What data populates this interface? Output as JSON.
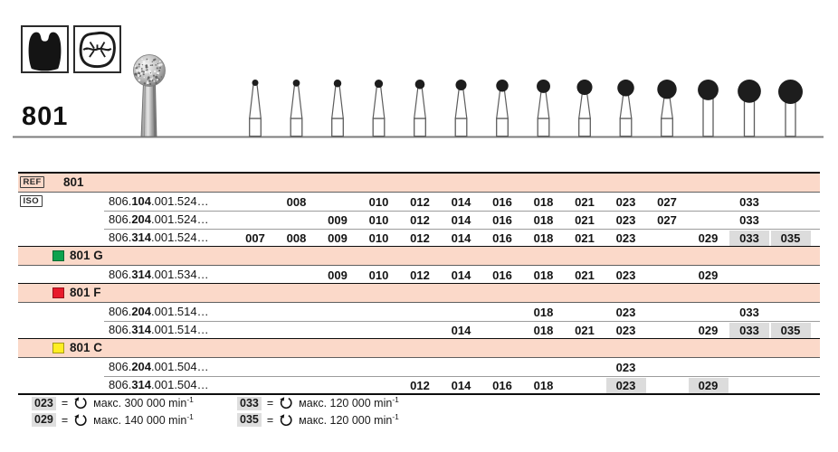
{
  "product": {
    "number": "801"
  },
  "icons": {
    "left_box": "tooth-crown-icon",
    "right_box": "occlusal-molar-icon",
    "legend": "rotation-speed-icon",
    "photo": "round-diamond-bur-photo",
    "strip": "bur-size-silhouettes"
  },
  "colors": {
    "band_pink": "#fbd9c9",
    "highlight_gray": "#dcdcdc",
    "variant_green": "#0ea24d",
    "variant_red": "#e81b2b",
    "variant_yellow": "#ffee22",
    "line_dark": "#0d0d0d",
    "line_gray": "#9c9c9c"
  },
  "columns": [
    "007",
    "008",
    "009",
    "010",
    "012",
    "014",
    "016",
    "018",
    "021",
    "023",
    "027",
    "029",
    "033",
    "035"
  ],
  "sections": [
    {
      "kind": "ref",
      "badge": "REF",
      "label": "801",
      "rows": [
        {
          "badge": "ISO",
          "iso_prefix": "806.",
          "iso_bold": "104",
          "iso_suffix": ".001.524…",
          "sizes": [
            "008",
            "010",
            "012",
            "014",
            "016",
            "018",
            "021",
            "023",
            "027",
            "033"
          ],
          "highlight": []
        },
        {
          "iso_prefix": "806.",
          "iso_bold": "204",
          "iso_suffix": ".001.524…",
          "sizes": [
            "009",
            "010",
            "012",
            "014",
            "016",
            "018",
            "021",
            "023",
            "027",
            "033"
          ],
          "highlight": []
        },
        {
          "iso_prefix": "806.",
          "iso_bold": "314",
          "iso_suffix": ".001.524…",
          "sizes": [
            "007",
            "008",
            "009",
            "010",
            "012",
            "014",
            "016",
            "018",
            "021",
            "023",
            "029",
            "033",
            "035"
          ],
          "highlight": [
            "033",
            "035"
          ]
        }
      ]
    },
    {
      "kind": "variant",
      "label": "801 G",
      "color": "#0ea24d",
      "rows": [
        {
          "iso_prefix": "806.",
          "iso_bold": "314",
          "iso_suffix": ".001.534…",
          "sizes": [
            "009",
            "010",
            "012",
            "014",
            "016",
            "018",
            "021",
            "023",
            "029"
          ],
          "highlight": []
        }
      ]
    },
    {
      "kind": "variant",
      "label": "801 F",
      "color": "#e81b2b",
      "rows": [
        {
          "iso_prefix": "806.",
          "iso_bold": "204",
          "iso_suffix": ".001.514…",
          "sizes": [
            "018",
            "023",
            "033"
          ],
          "highlight": []
        },
        {
          "iso_prefix": "806.",
          "iso_bold": "314",
          "iso_suffix": ".001.514…",
          "sizes": [
            "014",
            "018",
            "021",
            "023",
            "029",
            "033",
            "035"
          ],
          "highlight": [
            "033",
            "035"
          ]
        }
      ]
    },
    {
      "kind": "variant",
      "label": "801 C",
      "color": "#ffee22",
      "rows": [
        {
          "iso_prefix": "806.",
          "iso_bold": "204",
          "iso_suffix": ".001.504…",
          "sizes": [
            "023"
          ],
          "highlight": []
        },
        {
          "iso_prefix": "806.",
          "iso_bold": "314",
          "iso_suffix": ".001.504…",
          "sizes": [
            "012",
            "014",
            "016",
            "018",
            "023",
            "029"
          ],
          "highlight": [
            "023",
            "029"
          ]
        }
      ]
    }
  ],
  "legend": [
    {
      "size": "023",
      "text": "макс. 300 000 min",
      "exp": "-1"
    },
    {
      "size": "029",
      "text": "макс. 140 000 min",
      "exp": "-1"
    },
    {
      "size": "033",
      "text": "макс. 120 000 min",
      "exp": "-1"
    },
    {
      "size": "035",
      "text": "макс. 120 000 min",
      "exp": "-1"
    }
  ]
}
